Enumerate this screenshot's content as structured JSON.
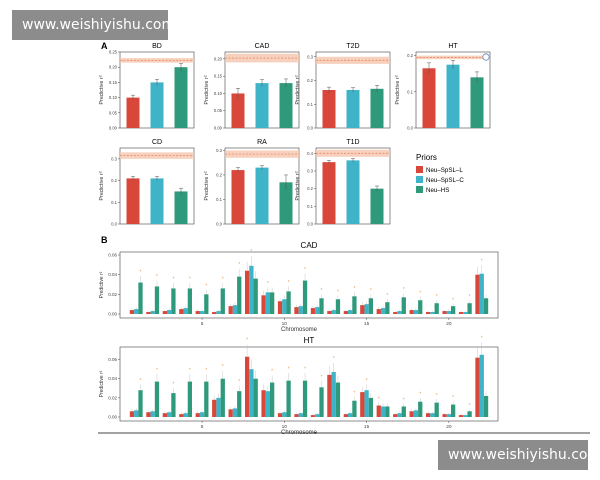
{
  "watermark": {
    "top": "www.weishiyishu.com",
    "bottom": "www.weishiyishu.com"
  },
  "colors": {
    "L": "#d9473b",
    "C": "#3fb4c8",
    "HS": "#2f9a7b",
    "band": "#f6c9b2",
    "bandLine": "#e88a6a",
    "accent": "#e8a055"
  },
  "panel_a": {
    "label": "A",
    "ylabel": "Predictive r²",
    "legend": {
      "title": "Priors",
      "items": [
        "Neu–SpSL–L",
        "Neu–SpSL–C",
        "Neu–HS"
      ]
    }
  },
  "panel_b": {
    "label": "B",
    "xlabel": "Chromosome"
  },
  "chart_data": [
    {
      "type": "bar",
      "title": "BD",
      "categories": [
        "Neu–SpSL–L",
        "Neu–SpSL–C",
        "Neu–HS"
      ],
      "values": [
        0.1,
        0.15,
        0.2
      ],
      "errors": [
        0.008,
        0.01,
        0.012
      ],
      "band": [
        0.215,
        0.23
      ],
      "ylim": [
        0,
        0.25
      ],
      "yticks": [
        0,
        0.05,
        0.1,
        0.15,
        0.2,
        0.25
      ],
      "yticklabels": [
        "0.00",
        "0.05",
        "0.10",
        "0.15",
        "0.20",
        "0.25"
      ]
    },
    {
      "type": "bar",
      "title": "CAD",
      "categories": [
        "Neu–SpSL–L",
        "Neu–SpSL–C",
        "Neu–HS"
      ],
      "values": [
        0.1,
        0.13,
        0.13
      ],
      "errors": [
        0.015,
        0.01,
        0.012
      ],
      "band": [
        0.19,
        0.215
      ],
      "ylim": [
        0,
        0.22
      ],
      "yticks": [
        0,
        0.05,
        0.1,
        0.15,
        0.2
      ],
      "yticklabels": [
        "0.00",
        "0.05",
        "0.10",
        "0.15",
        "0.20"
      ]
    },
    {
      "type": "bar",
      "title": "T2D",
      "categories": [
        "Neu–SpSL–L",
        "Neu–SpSL–C",
        "Neu–HS"
      ],
      "values": [
        0.16,
        0.16,
        0.165
      ],
      "errors": [
        0.012,
        0.01,
        0.015
      ],
      "band": [
        0.27,
        0.3
      ],
      "ylim": [
        0,
        0.32
      ],
      "yticks": [
        0,
        0.1,
        0.2,
        0.3
      ],
      "yticklabels": [
        "0.0",
        "0.1",
        "0.2",
        "0.3"
      ]
    },
    {
      "type": "bar",
      "title": "HT",
      "categories": [
        "Neu–SpSL–L",
        "Neu–SpSL–C",
        "Neu–HS"
      ],
      "values": [
        0.165,
        0.175,
        0.14
      ],
      "errors": [
        0.015,
        0.012,
        0.015
      ],
      "band": [
        0.19,
        0.2
      ],
      "ylim": [
        0,
        0.21
      ],
      "yticks": [
        0,
        0.1,
        0.2
      ],
      "yticklabels": [
        "0.0",
        "0.1",
        "0.2"
      ]
    },
    {
      "type": "bar",
      "title": "CD",
      "categories": [
        "Neu–SpSL–L",
        "Neu–SpSL–C",
        "Neu–HS"
      ],
      "values": [
        0.21,
        0.21,
        0.15
      ],
      "errors": [
        0.01,
        0.01,
        0.015
      ],
      "band": [
        0.3,
        0.33
      ],
      "ylim": [
        0,
        0.35
      ],
      "yticks": [
        0,
        0.1,
        0.2,
        0.3
      ],
      "yticklabels": [
        "0.0",
        "0.1",
        "0.2",
        "0.3"
      ]
    },
    {
      "type": "bar",
      "title": "RA",
      "categories": [
        "Neu–SpSL–L",
        "Neu–SpSL–C",
        "Neu–HS"
      ],
      "values": [
        0.22,
        0.23,
        0.17
      ],
      "errors": [
        0.01,
        0.008,
        0.03
      ],
      "band": [
        0.27,
        0.3
      ],
      "ylim": [
        0,
        0.31
      ],
      "yticks": [
        0,
        0.1,
        0.2,
        0.3
      ],
      "yticklabels": [
        "0.0",
        "0.1",
        "0.2",
        "0.3"
      ]
    },
    {
      "type": "bar",
      "title": "T1D",
      "categories": [
        "Neu–SpSL–L",
        "Neu–SpSL–C",
        "Neu–HS"
      ],
      "values": [
        0.35,
        0.36,
        0.2
      ],
      "errors": [
        0.01,
        0.01,
        0.015
      ],
      "band": [
        0.38,
        0.42
      ],
      "ylim": [
        0,
        0.43
      ],
      "yticks": [
        0,
        0.1,
        0.2,
        0.3,
        0.4
      ],
      "yticklabels": [
        "0.0",
        "0.1",
        "0.2",
        "0.3",
        "0.4"
      ]
    },
    {
      "type": "bar",
      "title": "CAD",
      "xlabel": "Chromosome",
      "ylabel": "Predictive r²",
      "ylim": [
        0,
        0.06
      ],
      "yticks": [
        0,
        0.02,
        0.04,
        0.06
      ],
      "yticklabels": [
        "0.00",
        "0.02",
        "0.04",
        "0.06"
      ],
      "categories": [
        1,
        2,
        3,
        4,
        5,
        6,
        7,
        8,
        9,
        10,
        11,
        12,
        13,
        14,
        15,
        16,
        17,
        18,
        19,
        20,
        21,
        22
      ],
      "xticks": [
        5,
        10,
        15,
        20
      ],
      "xticklabels": [
        "5",
        "10",
        "15",
        "20"
      ],
      "series": [
        {
          "name": "Neu–SpSL–L",
          "values": [
            0.004,
            0.002,
            0.003,
            0.005,
            0.003,
            0.002,
            0.008,
            0.044,
            0.019,
            0.013,
            0.007,
            0.006,
            0.003,
            0.003,
            0.009,
            0.005,
            0.002,
            0.004,
            0.002,
            0.003,
            0.002,
            0.04
          ]
        },
        {
          "name": "Neu–SpSL–C",
          "values": [
            0.005,
            0.003,
            0.004,
            0.006,
            0.003,
            0.003,
            0.009,
            0.049,
            0.022,
            0.015,
            0.008,
            0.007,
            0.004,
            0.004,
            0.01,
            0.006,
            0.003,
            0.004,
            0.002,
            0.003,
            0.002,
            0.041
          ]
        },
        {
          "name": "Neu–HS",
          "values": [
            0.032,
            0.028,
            0.026,
            0.026,
            0.02,
            0.026,
            0.038,
            0.036,
            0.022,
            0.023,
            0.034,
            0.016,
            0.015,
            0.018,
            0.016,
            0.012,
            0.017,
            0.014,
            0.011,
            0.008,
            0.011,
            0.016
          ]
        }
      ]
    },
    {
      "type": "bar",
      "title": "HT",
      "xlabel": "Chromosome",
      "ylabel": "Predictive r²",
      "ylim": [
        0,
        0.07
      ],
      "yticks": [
        0,
        0.02,
        0.04,
        0.06
      ],
      "yticklabels": [
        "0.00",
        "0.02",
        "0.04",
        "0.06"
      ],
      "categories": [
        1,
        2,
        3,
        4,
        5,
        6,
        7,
        8,
        9,
        10,
        11,
        12,
        13,
        14,
        15,
        16,
        17,
        18,
        19,
        20,
        21,
        22
      ],
      "xticks": [
        5,
        10,
        15,
        20
      ],
      "xticklabels": [
        "5",
        "10",
        "15",
        "20"
      ],
      "series": [
        {
          "name": "Neu–SpSL–L",
          "values": [
            0.006,
            0.005,
            0.004,
            0.003,
            0.004,
            0.018,
            0.008,
            0.063,
            0.028,
            0.004,
            0.003,
            0.002,
            0.044,
            0.003,
            0.026,
            0.012,
            0.003,
            0.006,
            0.004,
            0.003,
            0.002,
            0.062
          ]
        },
        {
          "name": "Neu–SpSL–C",
          "values": [
            0.007,
            0.006,
            0.005,
            0.004,
            0.005,
            0.02,
            0.009,
            0.05,
            0.027,
            0.005,
            0.004,
            0.003,
            0.047,
            0.004,
            0.028,
            0.011,
            0.004,
            0.007,
            0.004,
            0.003,
            0.002,
            0.065
          ]
        },
        {
          "name": "Neu–HS",
          "values": [
            0.028,
            0.037,
            0.025,
            0.037,
            0.037,
            0.04,
            0.027,
            0.04,
            0.036,
            0.038,
            0.038,
            0.031,
            0.036,
            0.017,
            0.02,
            0.011,
            0.011,
            0.016,
            0.015,
            0.013,
            0.006,
            0.022
          ]
        }
      ]
    }
  ]
}
